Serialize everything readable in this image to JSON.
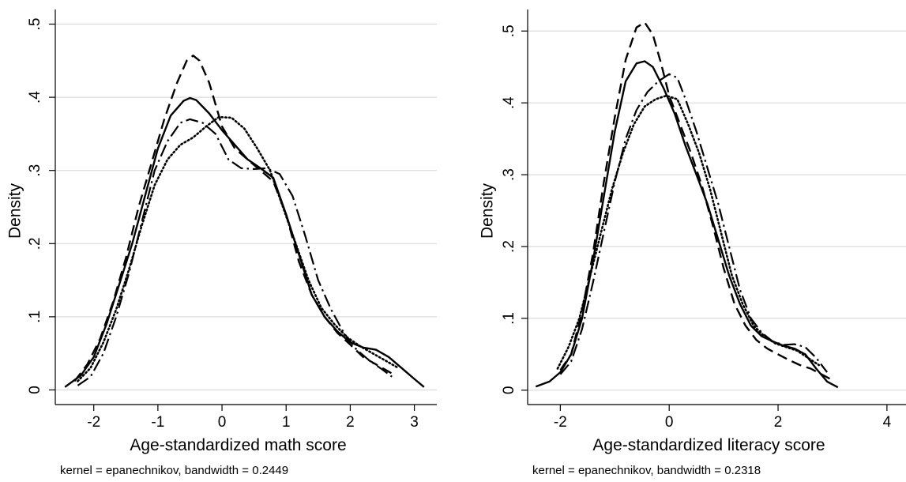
{
  "chart_data": [
    {
      "type": "line",
      "xlabel": "Age-standardized math score",
      "ylabel": "Density",
      "note": "kernel = epanechnikov, bandwidth = 0.2449",
      "xlim": [
        -2.6,
        3.35
      ],
      "ylim": [
        -0.02,
        0.52
      ],
      "xticks": [
        "-2",
        "-1",
        "0",
        "1",
        "2",
        "3"
      ],
      "xtick_values": [
        -2,
        -1,
        0,
        1,
        2,
        3
      ],
      "yticks": [
        "0",
        ".1",
        ".2",
        ".3",
        ".4",
        ".5"
      ],
      "ytick_values": [
        0,
        0.1,
        0.2,
        0.3,
        0.4,
        0.5
      ],
      "grid": true,
      "series": [
        {
          "style": "solid",
          "x": [
            -2.45,
            -2.2,
            -2.0,
            -1.8,
            -1.6,
            -1.4,
            -1.2,
            -1.0,
            -0.8,
            -0.6,
            -0.5,
            -0.4,
            -0.2,
            0.0,
            0.2,
            0.4,
            0.6,
            0.8,
            1.0,
            1.2,
            1.4,
            1.6,
            1.8,
            2.0,
            2.2,
            2.4,
            2.6,
            2.8,
            3.0,
            3.15
          ],
          "y": [
            0.004,
            0.02,
            0.045,
            0.09,
            0.145,
            0.2,
            0.265,
            0.33,
            0.375,
            0.395,
            0.399,
            0.396,
            0.378,
            0.355,
            0.335,
            0.315,
            0.303,
            0.29,
            0.24,
            0.185,
            0.13,
            0.1,
            0.08,
            0.065,
            0.058,
            0.055,
            0.045,
            0.03,
            0.015,
            0.004
          ]
        },
        {
          "style": "dash",
          "x": [
            -2.3,
            -2.1,
            -1.9,
            -1.7,
            -1.5,
            -1.3,
            -1.1,
            -0.9,
            -0.7,
            -0.55,
            -0.45,
            -0.35,
            -0.2,
            0.0,
            0.2,
            0.4,
            0.6,
            0.8,
            1.0,
            1.2,
            1.4,
            1.6,
            1.8,
            2.0,
            2.2,
            2.4,
            2.6,
            2.7
          ],
          "y": [
            0.012,
            0.035,
            0.07,
            0.12,
            0.18,
            0.25,
            0.31,
            0.37,
            0.42,
            0.45,
            0.457,
            0.45,
            0.42,
            0.36,
            0.33,
            0.315,
            0.3,
            0.285,
            0.24,
            0.175,
            0.13,
            0.1,
            0.078,
            0.062,
            0.045,
            0.035,
            0.025,
            0.02
          ]
        },
        {
          "style": "dashdot",
          "x": [
            -2.25,
            -2.05,
            -1.85,
            -1.65,
            -1.45,
            -1.25,
            -1.05,
            -0.85,
            -0.65,
            -0.5,
            -0.3,
            -0.1,
            0.1,
            0.3,
            0.5,
            0.7,
            0.9,
            1.1,
            1.3,
            1.5,
            1.7,
            1.9,
            2.1,
            2.3,
            2.5,
            2.65
          ],
          "y": [
            0.006,
            0.018,
            0.05,
            0.1,
            0.16,
            0.23,
            0.3,
            0.34,
            0.365,
            0.37,
            0.365,
            0.35,
            0.315,
            0.303,
            0.302,
            0.303,
            0.295,
            0.265,
            0.21,
            0.15,
            0.11,
            0.078,
            0.055,
            0.04,
            0.028,
            0.018
          ]
        },
        {
          "style": "dot",
          "x": [
            -2.25,
            -2.05,
            -1.85,
            -1.65,
            -1.45,
            -1.25,
            -1.05,
            -0.85,
            -0.65,
            -0.45,
            -0.25,
            -0.05,
            0.15,
            0.35,
            0.55,
            0.75,
            0.95,
            1.15,
            1.35,
            1.55,
            1.75,
            1.95,
            2.15,
            2.35,
            2.55,
            2.75
          ],
          "y": [
            0.012,
            0.03,
            0.065,
            0.11,
            0.165,
            0.225,
            0.28,
            0.315,
            0.335,
            0.345,
            0.36,
            0.373,
            0.372,
            0.357,
            0.33,
            0.3,
            0.25,
            0.2,
            0.15,
            0.112,
            0.09,
            0.072,
            0.06,
            0.05,
            0.04,
            0.03
          ]
        }
      ]
    },
    {
      "type": "line",
      "xlabel": "Age-standardized literacy score",
      "ylabel": "Density",
      "note": "kernel = epanechnikov, bandwidth = 0.2318",
      "xlim": [
        -2.6,
        4.35
      ],
      "ylim": [
        -0.02,
        0.53
      ],
      "xticks": [
        "-2",
        "0",
        "2",
        "4"
      ],
      "xtick_values": [
        -2,
        0,
        2,
        4
      ],
      "yticks": [
        "0",
        ".1",
        ".2",
        ".3",
        ".4",
        ".5"
      ],
      "ytick_values": [
        0,
        0.1,
        0.2,
        0.3,
        0.4,
        0.5
      ],
      "grid": true,
      "series": [
        {
          "style": "solid",
          "x": [
            -2.45,
            -2.2,
            -2.0,
            -1.8,
            -1.6,
            -1.4,
            -1.2,
            -1.0,
            -0.8,
            -0.6,
            -0.45,
            -0.3,
            -0.1,
            0.1,
            0.3,
            0.5,
            0.7,
            0.9,
            1.1,
            1.3,
            1.5,
            1.7,
            1.9,
            2.1,
            2.3,
            2.5,
            2.7,
            2.9,
            3.1
          ],
          "y": [
            0.005,
            0.012,
            0.025,
            0.05,
            0.1,
            0.18,
            0.27,
            0.36,
            0.43,
            0.455,
            0.458,
            0.45,
            0.42,
            0.385,
            0.34,
            0.3,
            0.26,
            0.21,
            0.16,
            0.12,
            0.09,
            0.075,
            0.068,
            0.062,
            0.058,
            0.05,
            0.03,
            0.012,
            0.004
          ]
        },
        {
          "style": "dash",
          "x": [
            -2.0,
            -1.8,
            -1.6,
            -1.4,
            -1.2,
            -1.0,
            -0.8,
            -0.6,
            -0.45,
            -0.3,
            -0.15,
            0.0,
            0.2,
            0.4,
            0.6,
            0.8,
            1.0,
            1.2,
            1.4,
            1.6,
            1.8,
            2.0,
            2.2,
            2.4,
            2.6,
            2.8,
            3.0
          ],
          "y": [
            0.028,
            0.05,
            0.11,
            0.19,
            0.29,
            0.38,
            0.46,
            0.505,
            0.512,
            0.495,
            0.455,
            0.41,
            0.37,
            0.33,
            0.285,
            0.23,
            0.17,
            0.12,
            0.09,
            0.07,
            0.058,
            0.05,
            0.042,
            0.035,
            0.03,
            0.022,
            0.014
          ]
        },
        {
          "style": "dashdot",
          "x": [
            -2.0,
            -1.8,
            -1.6,
            -1.4,
            -1.2,
            -1.0,
            -0.8,
            -0.6,
            -0.4,
            -0.2,
            0.0,
            0.15,
            0.3,
            0.5,
            0.7,
            0.9,
            1.1,
            1.3,
            1.5,
            1.7,
            1.9,
            2.1,
            2.3,
            2.5,
            2.7,
            2.9
          ],
          "y": [
            0.022,
            0.04,
            0.085,
            0.15,
            0.22,
            0.29,
            0.35,
            0.39,
            0.415,
            0.43,
            0.44,
            0.435,
            0.405,
            0.36,
            0.31,
            0.26,
            0.2,
            0.14,
            0.1,
            0.08,
            0.068,
            0.063,
            0.064,
            0.06,
            0.045,
            0.025
          ]
        },
        {
          "style": "dot",
          "x": [
            -2.05,
            -1.85,
            -1.65,
            -1.45,
            -1.25,
            -1.05,
            -0.85,
            -0.65,
            -0.45,
            -0.25,
            -0.05,
            0.15,
            0.35,
            0.55,
            0.75,
            0.95,
            1.15,
            1.35,
            1.55,
            1.75,
            1.95,
            2.15,
            2.35,
            2.55,
            2.75
          ],
          "y": [
            0.03,
            0.06,
            0.1,
            0.16,
            0.22,
            0.28,
            0.33,
            0.37,
            0.395,
            0.405,
            0.41,
            0.405,
            0.37,
            0.33,
            0.28,
            0.22,
            0.16,
            0.12,
            0.09,
            0.075,
            0.065,
            0.06,
            0.055,
            0.045,
            0.035
          ]
        }
      ]
    }
  ]
}
